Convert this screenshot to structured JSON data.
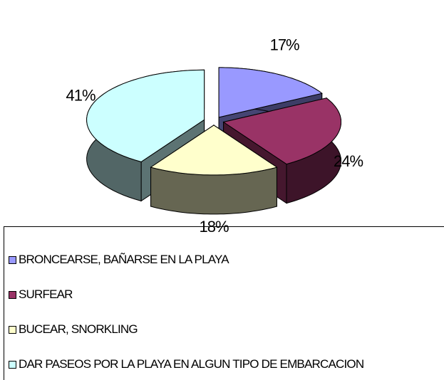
{
  "chart_data": {
    "type": "pie",
    "categories": [
      "BRONCEARSE, BAÑARSE EN LA PLAYA",
      "SURFEAR",
      "BUCEAR, SNORKLING",
      "DAR PASEOS POR LA PLAYA EN ALGUN TIPO DE EMBARCACION"
    ],
    "values": [
      17,
      24,
      18,
      41
    ],
    "value_labels": [
      "17%",
      "24%",
      "18%",
      "41%"
    ],
    "colors": [
      "#9999ff",
      "#993366",
      "#ffffcc",
      "#ccffff"
    ],
    "legend": "bottom"
  }
}
